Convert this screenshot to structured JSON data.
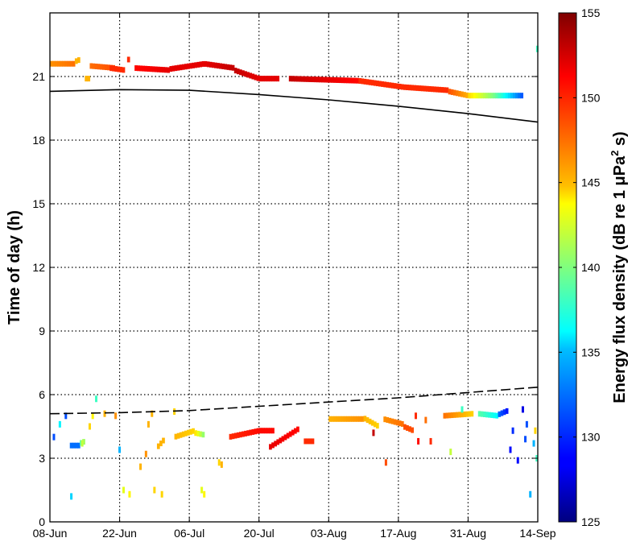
{
  "chart_data": {
    "type": "heatmap",
    "ylabel": "Time of day (h)",
    "colorbar_label_prefix": "Energy flux density (dB re 1 μPa",
    "colorbar_label_sup": "2",
    "colorbar_label_suffix": " s)",
    "x_tick_labels": [
      "08-Jun",
      "22-Jun",
      "06-Jul",
      "20-Jul",
      "03-Aug",
      "17-Aug",
      "31-Aug",
      "14-Sep"
    ],
    "x_range_days": [
      0,
      98
    ],
    "y_ticks": [
      0,
      3,
      6,
      9,
      12,
      15,
      18,
      21
    ],
    "y_range": [
      0,
      24
    ],
    "colorbar_ticks": [
      125,
      130,
      135,
      140,
      145,
      150,
      155
    ],
    "colorbar_range": [
      125,
      155
    ],
    "colormap": "jet",
    "grid": true,
    "lines": [
      {
        "style": "solid",
        "points": [
          [
            0,
            20.3
          ],
          [
            14,
            20.38
          ],
          [
            28,
            20.35
          ],
          [
            42,
            20.15
          ],
          [
            56,
            19.9
          ],
          [
            70,
            19.6
          ],
          [
            84,
            19.25
          ],
          [
            98,
            18.85
          ]
        ]
      },
      {
        "style": "dashed",
        "points": [
          [
            0,
            5.1
          ],
          [
            14,
            5.15
          ],
          [
            28,
            5.25
          ],
          [
            42,
            5.45
          ],
          [
            56,
            5.65
          ],
          [
            70,
            5.85
          ],
          [
            84,
            6.1
          ],
          [
            98,
            6.35
          ]
        ]
      }
    ],
    "segments": [
      {
        "x0": 0,
        "x1": 5,
        "y0": 21.6,
        "y1": 21.6,
        "v0": 147,
        "v1": 148
      },
      {
        "x0": 5,
        "x1": 6,
        "y0": 21.7,
        "y1": 21.8,
        "v0": 146,
        "v1": 146
      },
      {
        "x0": 7,
        "x1": 8,
        "y0": 20.9,
        "y1": 20.9,
        "v0": 146,
        "v1": 146
      },
      {
        "x0": 8,
        "x1": 13,
        "y0": 21.5,
        "y1": 21.4,
        "v0": 148,
        "v1": 149
      },
      {
        "x0": 12,
        "x1": 15,
        "y0": 21.4,
        "y1": 21.3,
        "v0": 150,
        "v1": 150
      },
      {
        "x0": 15.5,
        "x1": 16,
        "y0": 21.8,
        "y1": 21.8,
        "v0": 150,
        "v1": 150
      },
      {
        "x0": 17,
        "x1": 24,
        "y0": 21.4,
        "y1": 21.3,
        "v0": 151,
        "v1": 152
      },
      {
        "x0": 24,
        "x1": 31,
        "y0": 21.35,
        "y1": 21.6,
        "v0": 152,
        "v1": 152
      },
      {
        "x0": 31,
        "x1": 37,
        "y0": 21.6,
        "y1": 21.4,
        "v0": 152,
        "v1": 153
      },
      {
        "x0": 37,
        "x1": 42,
        "y0": 21.3,
        "y1": 20.9,
        "v0": 153,
        "v1": 152
      },
      {
        "x0": 42,
        "x1": 46,
        "y0": 20.9,
        "y1": 20.9,
        "v0": 152,
        "v1": 152
      },
      {
        "x0": 48,
        "x1": 62,
        "y0": 20.9,
        "y1": 20.8,
        "v0": 153,
        "v1": 151
      },
      {
        "x0": 62,
        "x1": 71,
        "y0": 20.8,
        "y1": 20.5,
        "v0": 150,
        "v1": 150
      },
      {
        "x0": 71,
        "x1": 80,
        "y0": 20.5,
        "y1": 20.35,
        "v0": 150,
        "v1": 150
      },
      {
        "x0": 80,
        "x1": 84,
        "y0": 20.3,
        "y1": 20.1,
        "v0": 149,
        "v1": 146
      },
      {
        "x0": 84,
        "x1": 89,
        "y0": 20.1,
        "y1": 20.1,
        "v0": 145,
        "v1": 140
      },
      {
        "x0": 89,
        "x1": 95,
        "y0": 20.1,
        "y1": 20.1,
        "v0": 140,
        "v1": 131
      },
      {
        "x0": 4,
        "x1": 6,
        "y0": 3.6,
        "y1": 3.6,
        "v0": 132,
        "v1": 132
      },
      {
        "x0": 6,
        "x1": 7,
        "y0": 3.7,
        "y1": 3.8,
        "v0": 138,
        "v1": 142
      },
      {
        "x0": 21.5,
        "x1": 23,
        "y0": 3.5,
        "y1": 3.9,
        "v0": 146,
        "v1": 146
      },
      {
        "x0": 25,
        "x1": 29,
        "y0": 4.0,
        "y1": 4.3,
        "v0": 146,
        "v1": 145
      },
      {
        "x0": 29,
        "x1": 31,
        "y0": 4.2,
        "y1": 4.1,
        "v0": 145,
        "v1": 140
      },
      {
        "x0": 36,
        "x1": 42,
        "y0": 4.0,
        "y1": 4.3,
        "v0": 150,
        "v1": 151
      },
      {
        "x0": 42,
        "x1": 45,
        "y0": 4.3,
        "y1": 4.3,
        "v0": 151,
        "v1": 151
      },
      {
        "x0": 44,
        "x1": 50,
        "y0": 3.5,
        "y1": 4.4,
        "v0": 152,
        "v1": 151
      },
      {
        "x0": 51,
        "x1": 53,
        "y0": 3.8,
        "y1": 3.8,
        "v0": 150,
        "v1": 150
      },
      {
        "x0": 56,
        "x1": 63,
        "y0": 4.85,
        "y1": 4.85,
        "v0": 146,
        "v1": 147
      },
      {
        "x0": 63,
        "x1": 66,
        "y0": 4.9,
        "y1": 4.5,
        "v0": 146,
        "v1": 145
      },
      {
        "x0": 67,
        "x1": 71,
        "y0": 4.85,
        "y1": 4.6,
        "v0": 147,
        "v1": 148
      },
      {
        "x0": 71,
        "x1": 73,
        "y0": 4.5,
        "y1": 4.3,
        "v0": 149,
        "v1": 149
      },
      {
        "x0": 79,
        "x1": 85,
        "y0": 5.0,
        "y1": 5.1,
        "v0": 148,
        "v1": 145
      },
      {
        "x0": 86,
        "x1": 90,
        "y0": 5.1,
        "y1": 5.0,
        "v0": 139,
        "v1": 136
      },
      {
        "x0": 90,
        "x1": 92,
        "y0": 5.05,
        "y1": 5.25,
        "v0": 132,
        "v1": 129
      }
    ],
    "dots": [
      {
        "x": 0.8,
        "y": 4.0,
        "v": 131
      },
      {
        "x": 2.0,
        "y": 4.6,
        "v": 136
      },
      {
        "x": 3.2,
        "y": 5.0,
        "v": 131
      },
      {
        "x": 4.3,
        "y": 1.2,
        "v": 135
      },
      {
        "x": 6.5,
        "y": 3.7,
        "v": 142
      },
      {
        "x": 8.0,
        "y": 4.5,
        "v": 145
      },
      {
        "x": 8.6,
        "y": 5.0,
        "v": 144
      },
      {
        "x": 9.3,
        "y": 5.8,
        "v": 138
      },
      {
        "x": 11.0,
        "y": 5.1,
        "v": 146
      },
      {
        "x": 13.2,
        "y": 5.0,
        "v": 147
      },
      {
        "x": 14.0,
        "y": 3.4,
        "v": 134
      },
      {
        "x": 14.8,
        "y": 1.5,
        "v": 143
      },
      {
        "x": 16.0,
        "y": 1.3,
        "v": 144
      },
      {
        "x": 18.2,
        "y": 2.6,
        "v": 146
      },
      {
        "x": 19.3,
        "y": 3.2,
        "v": 147
      },
      {
        "x": 19.8,
        "y": 4.6,
        "v": 146
      },
      {
        "x": 20.5,
        "y": 5.1,
        "v": 146
      },
      {
        "x": 21.0,
        "y": 1.5,
        "v": 145
      },
      {
        "x": 22.5,
        "y": 1.3,
        "v": 145
      },
      {
        "x": 25.0,
        "y": 5.2,
        "v": 145
      },
      {
        "x": 30.5,
        "y": 1.5,
        "v": 143
      },
      {
        "x": 31.0,
        "y": 1.3,
        "v": 144
      },
      {
        "x": 34.0,
        "y": 2.8,
        "v": 145
      },
      {
        "x": 34.5,
        "y": 2.7,
        "v": 146
      },
      {
        "x": 65.0,
        "y": 4.2,
        "v": 153
      },
      {
        "x": 67.5,
        "y": 2.8,
        "v": 149
      },
      {
        "x": 73.5,
        "y": 5.0,
        "v": 150
      },
      {
        "x": 74.0,
        "y": 3.8,
        "v": 151
      },
      {
        "x": 75.5,
        "y": 4.8,
        "v": 148
      },
      {
        "x": 76.5,
        "y": 3.8,
        "v": 150
      },
      {
        "x": 80.5,
        "y": 3.3,
        "v": 142
      },
      {
        "x": 82.8,
        "y": 5.3,
        "v": 138
      },
      {
        "x": 92.5,
        "y": 3.4,
        "v": 129
      },
      {
        "x": 93.0,
        "y": 4.3,
        "v": 130
      },
      {
        "x": 94.0,
        "y": 2.9,
        "v": 129
      },
      {
        "x": 95.0,
        "y": 5.3,
        "v": 128
      },
      {
        "x": 95.5,
        "y": 3.9,
        "v": 131
      },
      {
        "x": 95.8,
        "y": 4.6,
        "v": 131
      },
      {
        "x": 96.5,
        "y": 1.3,
        "v": 134
      },
      {
        "x": 97.2,
        "y": 3.7,
        "v": 134
      },
      {
        "x": 97.5,
        "y": 4.3,
        "v": 145
      },
      {
        "x": 97.8,
        "y": 3.0,
        "v": 138
      },
      {
        "x": 97.9,
        "y": 22.3,
        "v": 138
      }
    ]
  }
}
